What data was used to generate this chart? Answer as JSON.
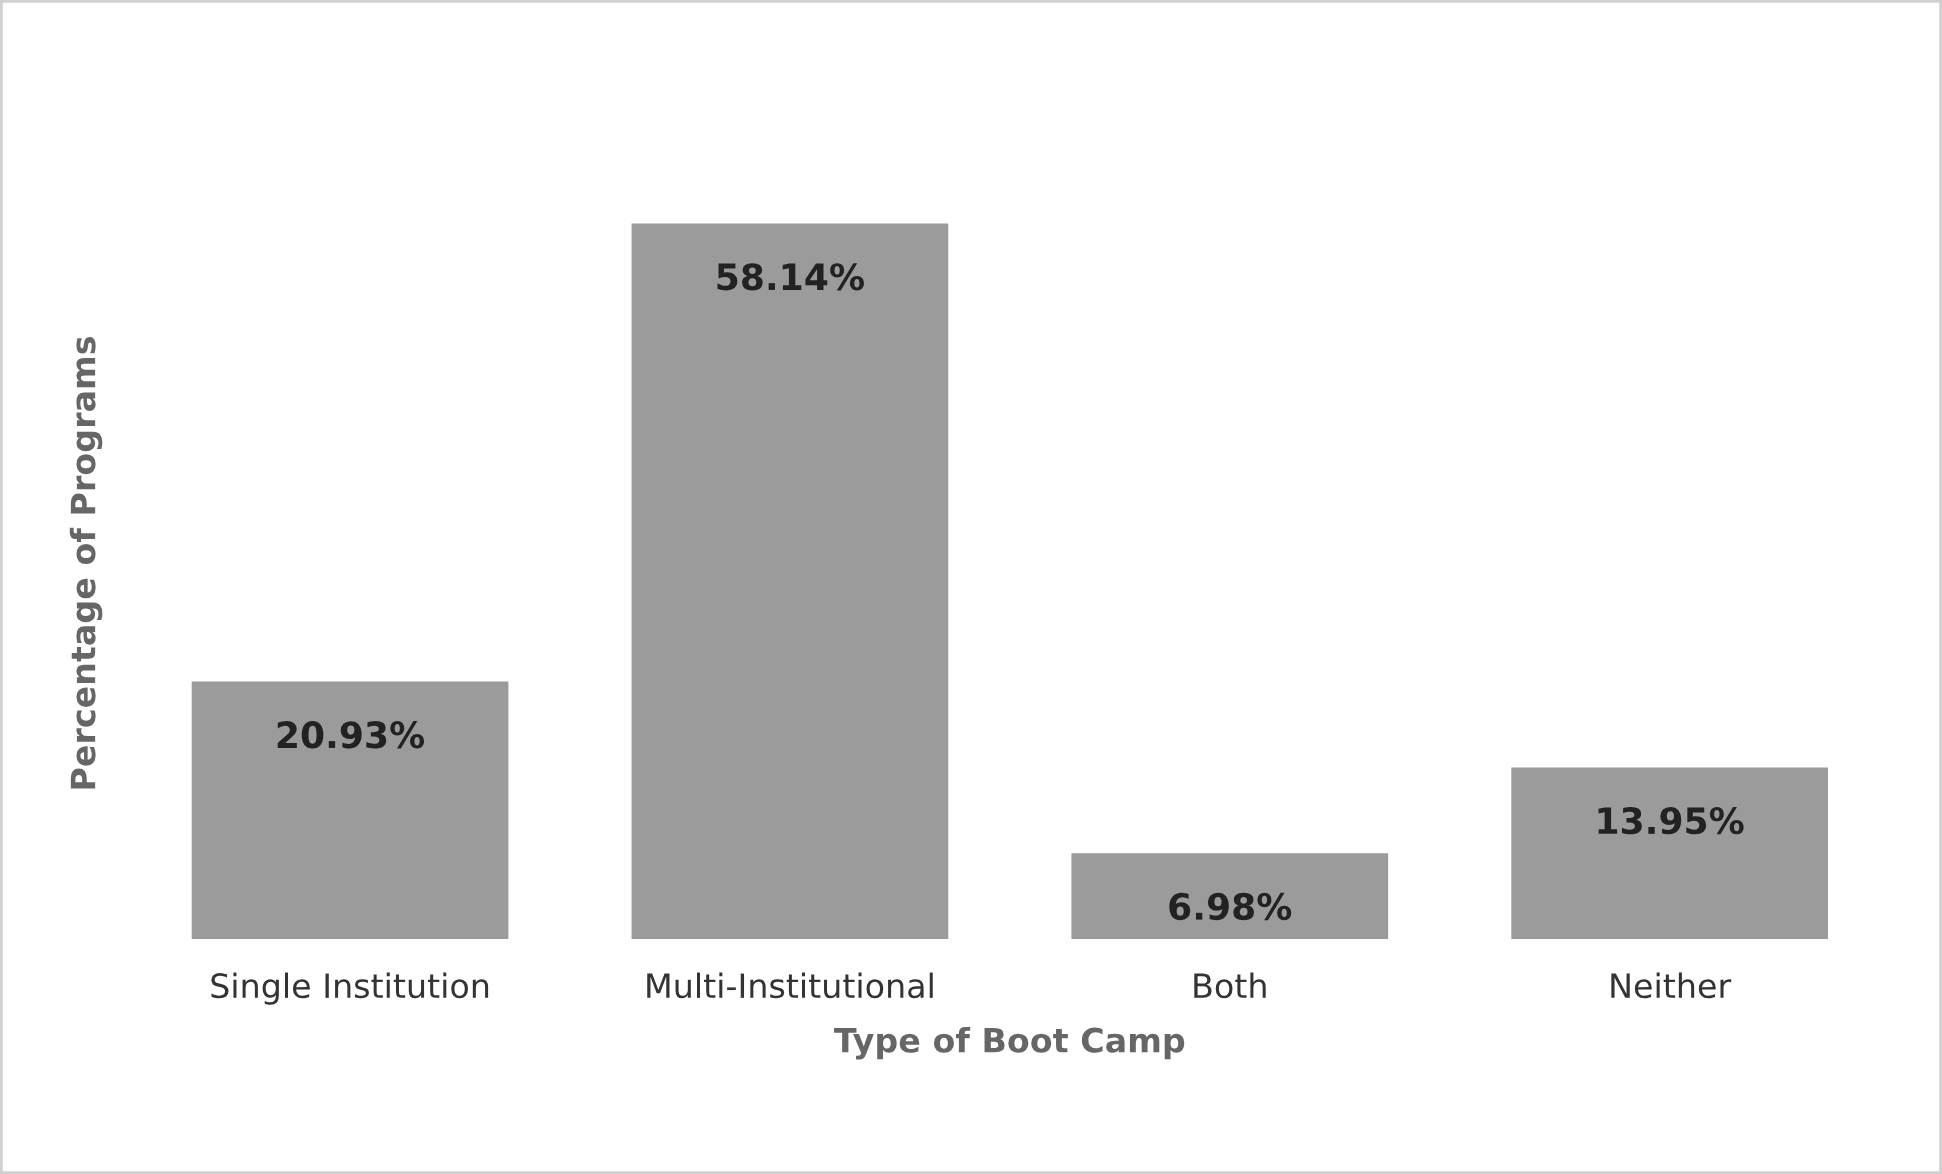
{
  "chart_data": {
    "type": "bar",
    "categories": [
      "Single Institution",
      "Multi-Institutional",
      "Both",
      "Neither"
    ],
    "values": [
      20.93,
      58.14,
      6.98,
      13.95
    ],
    "value_labels": [
      "20.93%",
      "58.14%",
      "6.98%",
      "13.95%"
    ],
    "color": "#9b9b9b",
    "xlabel": "Type of Boot Camp",
    "ylabel": "Percentage of Programs",
    "tick_labels": "x",
    "grid": false
  }
}
